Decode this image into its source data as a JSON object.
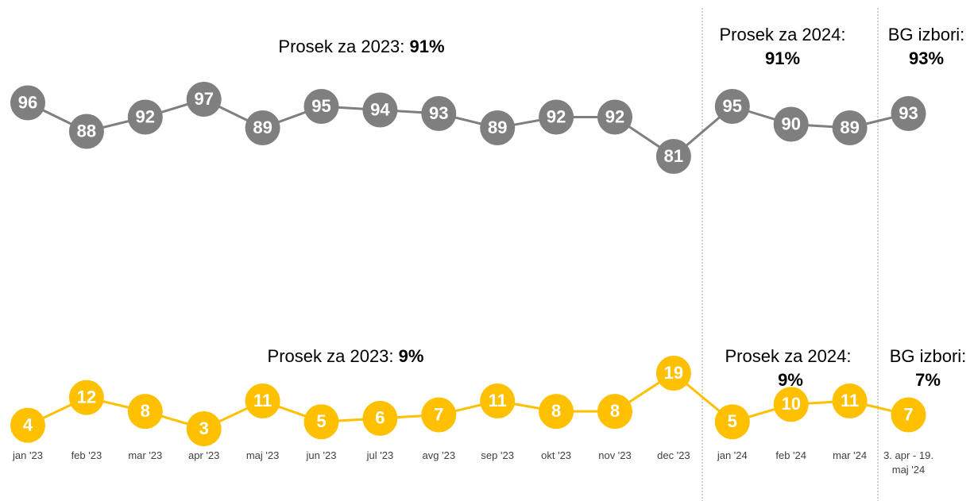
{
  "chart_data": {
    "type": "line",
    "categories": [
      "jan '23",
      "feb '23",
      "mar '23",
      "apr '23",
      "maj '23",
      "jun '23",
      "jul '23",
      "avg '23",
      "sep '23",
      "okt '23",
      "nov '23",
      "dec '23",
      "jan '24",
      "feb '24",
      "mar '24",
      "3. apr - 19. maj '24"
    ],
    "series": [
      {
        "color": "#7f7f7f",
        "values": [
          96,
          88,
          92,
          97,
          89,
          95,
          94,
          93,
          89,
          92,
          92,
          81,
          95,
          90,
          89,
          93
        ]
      },
      {
        "color": "#ffc000",
        "values": [
          4,
          12,
          8,
          3,
          11,
          5,
          6,
          7,
          11,
          8,
          8,
          19,
          5,
          10,
          11,
          7
        ]
      }
    ],
    "annotations": [
      {
        "label": "Prosek za 2023:",
        "value": "91%"
      },
      {
        "label": "Prosek za 2024:",
        "value": "91%"
      },
      {
        "label": "BG izbori:",
        "value": "93%"
      },
      {
        "label": "Prosek za 2023:",
        "value": "9%"
      },
      {
        "label": "Prosek za 2024:",
        "value": "9%"
      },
      {
        "label": "BG izbori:",
        "value": "7%"
      }
    ]
  }
}
